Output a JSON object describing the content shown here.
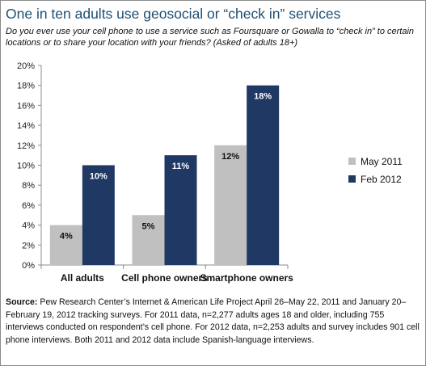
{
  "title": "One in ten adults use geosocial or “check in” services",
  "subtitle": "Do you ever use your cell phone to use a service such as Foursquare or Gowalla to “check in” to certain locations or to share your location with your friends? (Asked of adults 18+)",
  "source": {
    "label": "Source:",
    "text": "Pew Research Center’s Internet & American Life Project April 26–May 22, 2011 and January 20–February 19, 2012 tracking surveys. For 2011 data, n=2,277 adults ages 18 and older, including 755 interviews conducted on respondent’s cell phone. For 2012 data, n=2,253 adults and survey includes 901 cell phone interviews. Both 2011 and 2012 data include Spanish-language interviews."
  },
  "chart_data": {
    "type": "bar",
    "categories": [
      "All adults",
      "Cell phone owners",
      "Smartphone owners"
    ],
    "series": [
      {
        "name": "May 2011",
        "values": [
          4,
          5,
          12
        ],
        "labels": [
          "4%",
          "5%",
          "12%"
        ],
        "color": "#c0c0c0",
        "label_color": "#111111"
      },
      {
        "name": "Feb 2012",
        "values": [
          10,
          11,
          18
        ],
        "labels": [
          "10%",
          "11%",
          "18%"
        ],
        "color": "#1f3864",
        "label_color": "#ffffff"
      }
    ],
    "ylim": [
      0,
      20
    ],
    "yticks": [
      "0%",
      "2%",
      "4%",
      "6%",
      "8%",
      "10%",
      "12%",
      "14%",
      "16%",
      "18%",
      "20%"
    ],
    "ytick_values": [
      0,
      2,
      4,
      6,
      8,
      10,
      12,
      14,
      16,
      18,
      20
    ],
    "grid": false,
    "legend_position": "right"
  }
}
